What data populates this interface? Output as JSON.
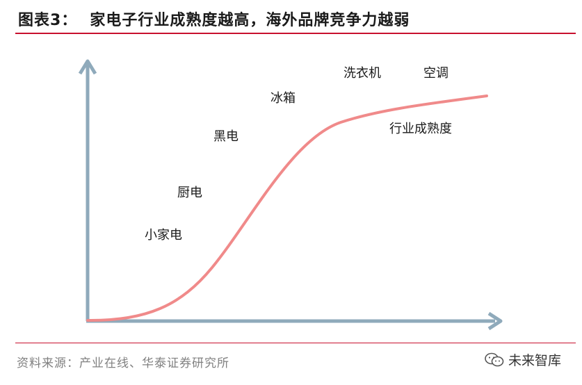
{
  "header": {
    "label": "图表3：",
    "title": "家电子行业成熟度越高，海外品牌竞争力越弱"
  },
  "diagram": {
    "categories": [
      "小家电",
      "厨电",
      "黑电",
      "冰箱",
      "洗衣机",
      "空调"
    ],
    "curve_label": "行业成熟度",
    "colors": {
      "axis": "#8faabb",
      "curve": "#f08a8a",
      "rule": "#c8102e"
    }
  },
  "footer": {
    "source": "资料来源：产业在线、华泰证券研究所",
    "watermark_text": "未来智库",
    "watermark_icon": "wechat-icon"
  }
}
